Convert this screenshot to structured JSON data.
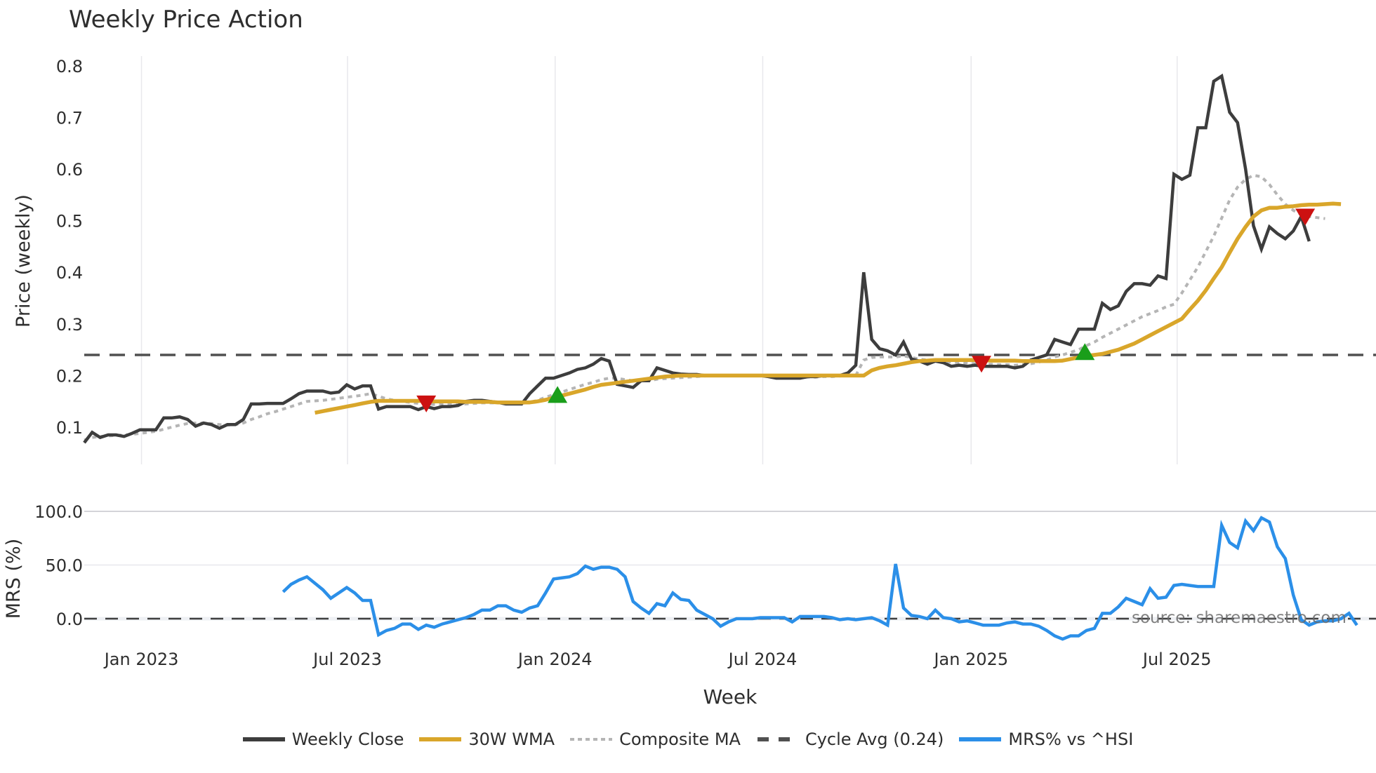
{
  "title": "Weekly Price Action",
  "source_note": "source: sharemaestro.com",
  "colors": {
    "weekly_close": "#3d3d3d",
    "wma30": "#d9a62a",
    "composite_ma": "#b5b5b5",
    "cycle_avg": "#505050",
    "mrs": "#2b8fe8",
    "sell_marker": "#cc1111",
    "buy_marker": "#1a9e1a",
    "grid": "#e8e8ec"
  },
  "legend": [
    {
      "key": "weekly_close",
      "label": "Weekly Close",
      "style": "solid"
    },
    {
      "key": "wma30",
      "label": "30W WMA",
      "style": "solid"
    },
    {
      "key": "composite_ma",
      "label": "Composite MA",
      "style": "dotted"
    },
    {
      "key": "cycle_avg",
      "label": "Cycle Avg (0.24)",
      "style": "dashed"
    },
    {
      "key": "mrs",
      "label": "MRS% vs ^HSI",
      "style": "solid"
    }
  ],
  "chart_data": [
    {
      "type": "line",
      "title": "Weekly Price Action",
      "xlabel": "Week",
      "ylabel": "Price (weekly)",
      "ylim": [
        0.04,
        0.82
      ],
      "yticks": [
        0.1,
        0.2,
        0.3,
        0.4,
        0.5,
        0.6,
        0.7,
        0.8
      ],
      "xtick_labels": [
        "Jan 2023",
        "Jul 2023",
        "Jan 2024",
        "Jul 2024",
        "Jan 2025",
        "Jul 2025"
      ],
      "xtick_week_index": [
        7.2,
        33.1,
        59.2,
        85.3,
        111.5,
        137.4
      ],
      "grid": "vertical",
      "x_start": "2022-11 (week 0)",
      "series": [
        {
          "name": "Weekly Close",
          "key": "weekly_close",
          "start_index": 0,
          "values": [
            0.07,
            0.09,
            0.08,
            0.085,
            0.085,
            0.082,
            0.088,
            0.095,
            0.095,
            0.095,
            0.118,
            0.118,
            0.12,
            0.115,
            0.102,
            0.108,
            0.105,
            0.098,
            0.105,
            0.105,
            0.115,
            0.145,
            0.145,
            0.146,
            0.146,
            0.146,
            0.155,
            0.165,
            0.17,
            0.17,
            0.17,
            0.166,
            0.168,
            0.182,
            0.174,
            0.18,
            0.18,
            0.135,
            0.14,
            0.14,
            0.14,
            0.14,
            0.134,
            0.14,
            0.136,
            0.14,
            0.14,
            0.142,
            0.15,
            0.152,
            0.152,
            0.15,
            0.148,
            0.145,
            0.145,
            0.145,
            0.165,
            0.18,
            0.195,
            0.195,
            0.2,
            0.205,
            0.212,
            0.215,
            0.222,
            0.233,
            0.228,
            0.183,
            0.18,
            0.177,
            0.19,
            0.19,
            0.215,
            0.21,
            0.205,
            0.203,
            0.202,
            0.202,
            0.2,
            0.2,
            0.2,
            0.2,
            0.2,
            0.2,
            0.2,
            0.2,
            0.198,
            0.195,
            0.195,
            0.195,
            0.195,
            0.198,
            0.198,
            0.2,
            0.2,
            0.2,
            0.205,
            0.22,
            0.4,
            0.27,
            0.252,
            0.248,
            0.24,
            0.265,
            0.232,
            0.228,
            0.222,
            0.228,
            0.225,
            0.218,
            0.22,
            0.218,
            0.22,
            0.218,
            0.218,
            0.218,
            0.218,
            0.215,
            0.218,
            0.23,
            0.235,
            0.24,
            0.27,
            0.265,
            0.26,
            0.29,
            0.29,
            0.29,
            0.34,
            0.328,
            0.335,
            0.363,
            0.378,
            0.378,
            0.375,
            0.393,
            0.388,
            0.59,
            0.58,
            0.588,
            0.68,
            0.68,
            0.77,
            0.78,
            0.71,
            0.69,
            0.6,
            0.49,
            0.445,
            0.488,
            0.475,
            0.465,
            0.48,
            0.508,
            0.46
          ]
        },
        {
          "name": "30W WMA",
          "key": "wma30",
          "start_index": 29,
          "values": [
            0.128,
            0.131,
            0.134,
            0.137,
            0.14,
            0.143,
            0.146,
            0.149,
            0.151,
            0.151,
            0.151,
            0.151,
            0.151,
            0.151,
            0.151,
            0.15,
            0.15,
            0.15,
            0.15,
            0.149,
            0.149,
            0.149,
            0.149,
            0.148,
            0.148,
            0.148,
            0.148,
            0.148,
            0.15,
            0.153,
            0.157,
            0.161,
            0.165,
            0.169,
            0.173,
            0.178,
            0.182,
            0.184,
            0.186,
            0.188,
            0.19,
            0.192,
            0.194,
            0.196,
            0.198,
            0.199,
            0.2,
            0.2,
            0.2,
            0.2,
            0.2,
            0.2,
            0.2,
            0.2,
            0.2,
            0.2,
            0.2,
            0.2,
            0.2,
            0.2,
            0.2,
            0.2,
            0.2,
            0.2,
            0.2,
            0.2,
            0.2,
            0.2,
            0.2,
            0.2,
            0.21,
            0.215,
            0.218,
            0.22,
            0.223,
            0.226,
            0.228,
            0.229,
            0.23,
            0.23,
            0.23,
            0.23,
            0.23,
            0.23,
            0.23,
            0.229,
            0.229,
            0.229,
            0.229,
            0.228,
            0.228,
            0.228,
            0.228,
            0.228,
            0.229,
            0.232,
            0.235,
            0.238,
            0.24,
            0.242,
            0.246,
            0.25,
            0.256,
            0.262,
            0.27,
            0.278,
            0.286,
            0.294,
            0.302,
            0.31,
            0.328,
            0.345,
            0.365,
            0.388,
            0.41,
            0.438,
            0.465,
            0.488,
            0.508,
            0.52,
            0.525,
            0.525,
            0.527,
            0.528,
            0.53,
            0.531,
            0.531,
            0.532,
            0.533,
            0.532
          ]
        },
        {
          "name": "Composite MA",
          "key": "composite_ma",
          "start_index": 0,
          "values": [
            0.075,
            0.08,
            0.082,
            0.083,
            0.084,
            0.085,
            0.086,
            0.088,
            0.09,
            0.092,
            0.096,
            0.1,
            0.104,
            0.107,
            0.108,
            0.108,
            0.107,
            0.105,
            0.104,
            0.105,
            0.108,
            0.115,
            0.12,
            0.126,
            0.13,
            0.135,
            0.14,
            0.145,
            0.15,
            0.151,
            0.152,
            0.154,
            0.156,
            0.158,
            0.16,
            0.162,
            0.165,
            0.16,
            0.155,
            0.152,
            0.15,
            0.148,
            0.146,
            0.145,
            0.144,
            0.144,
            0.144,
            0.144,
            0.145,
            0.146,
            0.147,
            0.147,
            0.147,
            0.146,
            0.146,
            0.146,
            0.148,
            0.152,
            0.158,
            0.163,
            0.168,
            0.173,
            0.178,
            0.183,
            0.187,
            0.192,
            0.195,
            0.195,
            0.192,
            0.19,
            0.19,
            0.19,
            0.193,
            0.194,
            0.195,
            0.196,
            0.197,
            0.198,
            0.199,
            0.2,
            0.2,
            0.2,
            0.2,
            0.2,
            0.2,
            0.2,
            0.2,
            0.199,
            0.198,
            0.197,
            0.197,
            0.197,
            0.197,
            0.198,
            0.198,
            0.199,
            0.2,
            0.2,
            0.23,
            0.235,
            0.236,
            0.236,
            0.236,
            0.238,
            0.235,
            0.232,
            0.23,
            0.229,
            0.228,
            0.226,
            0.225,
            0.224,
            0.223,
            0.222,
            0.222,
            0.221,
            0.221,
            0.22,
            0.221,
            0.223,
            0.226,
            0.23,
            0.236,
            0.24,
            0.245,
            0.25,
            0.258,
            0.265,
            0.274,
            0.282,
            0.29,
            0.298,
            0.306,
            0.314,
            0.32,
            0.326,
            0.333,
            0.338,
            0.36,
            0.385,
            0.41,
            0.44,
            0.47,
            0.505,
            0.54,
            0.565,
            0.58,
            0.588,
            0.585,
            0.57,
            0.55,
            0.532,
            0.52,
            0.512,
            0.508,
            0.506,
            0.504
          ]
        },
        {
          "name": "Cycle Avg (0.24)",
          "key": "cycle_avg",
          "constant": 0.24
        }
      ],
      "markers": [
        {
          "type": "sell",
          "week_index": 43.0,
          "value": 0.145
        },
        {
          "type": "buy",
          "week_index": 59.5,
          "value": 0.162
        },
        {
          "type": "sell",
          "week_index": 112.8,
          "value": 0.222
        },
        {
          "type": "buy",
          "week_index": 125.8,
          "value": 0.245
        },
        {
          "type": "sell",
          "week_index": 153.5,
          "value": 0.507
        }
      ]
    },
    {
      "type": "line",
      "title": "",
      "xlabel": "Week",
      "ylabel": "MRS (%)",
      "ylim": [
        -25,
        108
      ],
      "yticks": [
        0.0,
        50.0,
        100.0
      ],
      "ytick_labels": [
        "0.0",
        "50.0",
        "100.0"
      ],
      "zero_line": "dashed",
      "series": [
        {
          "name": "MRS% vs ^HSI",
          "key": "mrs",
          "start_index": 25,
          "values": [
            25,
            32,
            36,
            39,
            33,
            27,
            19,
            24,
            29,
            24,
            17,
            17,
            -15,
            -11,
            -9,
            -5,
            -5,
            -10,
            -6,
            -8,
            -5,
            -3,
            -1,
            1,
            4,
            8,
            8,
            12,
            12,
            8,
            6,
            10,
            12,
            24,
            37,
            38,
            39,
            42,
            49,
            46,
            48,
            48,
            46,
            39,
            16,
            10,
            5,
            14,
            12,
            24,
            18,
            17,
            8,
            4,
            0,
            -7,
            -3,
            0,
            0,
            0,
            1,
            1,
            1,
            1,
            -3,
            2,
            2,
            2,
            2,
            1,
            -1,
            0,
            -1,
            0,
            1,
            -2,
            -6,
            51,
            10,
            3,
            2,
            0,
            8,
            1,
            0,
            -3,
            -2,
            -4,
            -6,
            -6,
            -6,
            -4,
            -3,
            -5,
            -5,
            -7,
            -11,
            -16,
            -19,
            -16,
            -16,
            -11,
            -9,
            5,
            5,
            11,
            19,
            16,
            13,
            28,
            19,
            20,
            31,
            32,
            31,
            30,
            30,
            30,
            87,
            71,
            66,
            91,
            82,
            94,
            90,
            67,
            56,
            22,
            -1,
            -6,
            -3,
            -2,
            -2,
            0,
            5,
            -6
          ]
        }
      ]
    }
  ],
  "axes": {
    "price": {
      "ylabel": "Price (weekly)",
      "tick_labels": [
        "0.1",
        "0.2",
        "0.3",
        "0.4",
        "0.5",
        "0.6",
        "0.7",
        "0.8"
      ]
    },
    "mrs": {
      "ylabel": "MRS (%)",
      "tick_labels": [
        "0.0",
        "50.0",
        "100.0"
      ]
    },
    "x": {
      "label": "Week",
      "tick_labels": [
        "Jan 2023",
        "Jul 2023",
        "Jan 2024",
        "Jul 2024",
        "Jan 2025",
        "Jul 2025"
      ]
    }
  }
}
